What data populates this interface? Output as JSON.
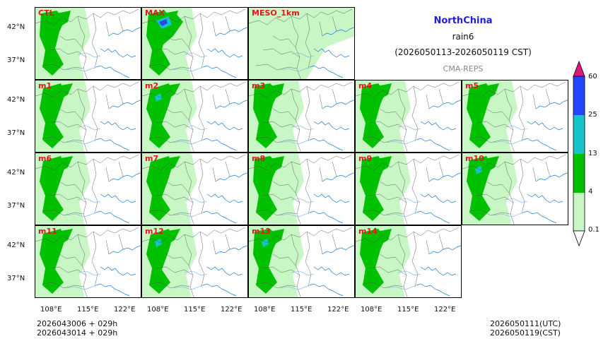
{
  "header": {
    "region": "NorthChina",
    "variable": "rain6",
    "period": "(2026050113-2026050119 CST)",
    "system": "CMA-REPS"
  },
  "panels": [
    "CTL",
    "MAX",
    "MESO_1km",
    "m1",
    "m2",
    "m3",
    "m4",
    "m5",
    "m6",
    "m7",
    "m8",
    "m9",
    "m10",
    "m11",
    "m12",
    "m13",
    "m14"
  ],
  "lat_labels": [
    "42°N",
    "37°N"
  ],
  "lon_labels": [
    "108°E",
    "115°E",
    "122°E"
  ],
  "colorbar": {
    "levels": [
      "0.1",
      "4",
      "13",
      "25",
      "60"
    ],
    "colors": {
      "over": "#e0177a",
      "c60": "#2446ff",
      "c25": "#15c3c9",
      "c13": "#00c000",
      "c4": "#c8f7c5",
      "under": "#ffffff"
    }
  },
  "footer": {
    "init1": "2026043006  +  029h",
    "init2": "2026043014  +  029h",
    "valid_utc": "2026050111(UTC)",
    "valid_cst": "2026050119(CST)"
  }
}
